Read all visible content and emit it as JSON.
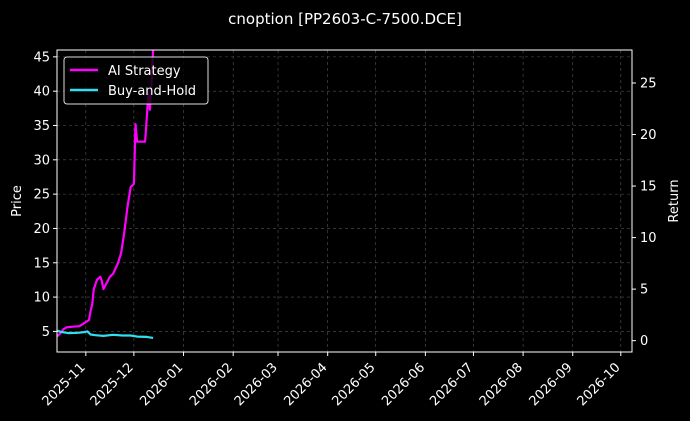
{
  "chart_data": {
    "type": "line",
    "title": "cnoption [PP2603-C-7500.DCE]",
    "ylabel": "Price",
    "y2label": "Return",
    "ylim": [
      2.0,
      46.0
    ],
    "y2lim": [
      -1.1,
      28.2
    ],
    "yticks": [
      5,
      10,
      15,
      20,
      25,
      30,
      35,
      40,
      45
    ],
    "y2ticks": [
      0,
      5,
      10,
      15,
      20,
      25
    ],
    "x_start": "2025-10-14",
    "x_end": "2026-10-08",
    "xticks": [
      "2025-11",
      "2025-12",
      "2026-01",
      "2026-02",
      "2026-03",
      "2026-04",
      "2026-05",
      "2026-06",
      "2026-07",
      "2026-08",
      "2026-09",
      "2026-10"
    ],
    "xtick_dates": [
      "2025-11-01",
      "2025-12-01",
      "2026-01-01",
      "2026-02-01",
      "2026-03-01",
      "2026-04-01",
      "2026-05-01",
      "2026-06-01",
      "2026-07-01",
      "2026-08-01",
      "2026-09-01",
      "2026-10-01"
    ],
    "grid": true,
    "legend_position": "top-left",
    "series": [
      {
        "name": "AI Strategy",
        "axis": "right",
        "color": "#ff00ff",
        "points": [
          [
            "2025-10-14",
            0.4
          ],
          [
            "2025-10-16",
            0.7
          ],
          [
            "2025-10-18",
            1.1
          ],
          [
            "2025-10-20",
            1.3
          ],
          [
            "2025-10-24",
            1.35
          ],
          [
            "2025-10-28",
            1.4
          ],
          [
            "2025-10-30",
            1.6
          ],
          [
            "2025-11-01",
            1.8
          ],
          [
            "2025-11-03",
            2.0
          ],
          [
            "2025-11-04",
            2.9
          ],
          [
            "2025-11-05",
            3.5
          ],
          [
            "2025-11-06",
            5.0
          ],
          [
            "2025-11-08",
            5.9
          ],
          [
            "2025-11-10",
            6.2
          ],
          [
            "2025-11-11",
            5.8
          ],
          [
            "2025-11-12",
            5.0
          ],
          [
            "2025-11-14",
            5.6
          ],
          [
            "2025-11-16",
            6.2
          ],
          [
            "2025-11-18",
            6.5
          ],
          [
            "2025-11-21",
            7.5
          ],
          [
            "2025-11-23",
            8.5
          ],
          [
            "2025-11-25",
            10.5
          ],
          [
            "2025-11-27",
            13.0
          ],
          [
            "2025-11-29",
            14.9
          ],
          [
            "2025-12-01",
            15.2
          ],
          [
            "2025-12-02",
            21.0
          ],
          [
            "2025-12-03",
            19.3
          ],
          [
            "2025-12-08",
            19.3
          ],
          [
            "2025-12-09",
            21.5
          ],
          [
            "2025-12-10",
            24.0
          ],
          [
            "2025-12-11",
            22.4
          ],
          [
            "2025-12-12",
            25.0
          ],
          [
            "2025-12-13",
            28.2
          ]
        ]
      },
      {
        "name": "Buy-and-Hold",
        "axis": "left",
        "color": "#30e0f0",
        "points": [
          [
            "2025-10-14",
            5.1
          ],
          [
            "2025-10-17",
            4.9
          ],
          [
            "2025-10-21",
            4.75
          ],
          [
            "2025-10-27",
            4.8
          ],
          [
            "2025-10-31",
            4.9
          ],
          [
            "2025-11-02",
            5.0
          ],
          [
            "2025-11-04",
            4.55
          ],
          [
            "2025-11-07",
            4.45
          ],
          [
            "2025-11-12",
            4.35
          ],
          [
            "2025-11-18",
            4.5
          ],
          [
            "2025-11-24",
            4.4
          ],
          [
            "2025-11-29",
            4.4
          ],
          [
            "2025-12-03",
            4.25
          ],
          [
            "2025-12-09",
            4.2
          ],
          [
            "2025-12-13",
            4.05
          ]
        ]
      }
    ]
  }
}
